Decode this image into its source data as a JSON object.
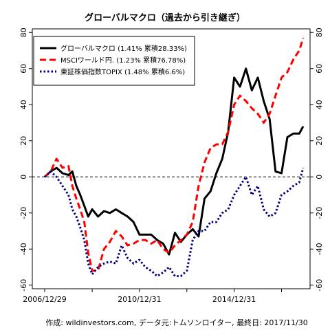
{
  "chart_data": {
    "type": "line",
    "title": "グローバルマクロ（過去から引き継ぎ）",
    "footer": "作成: wildinvestors.com, データ元:トムソンロイター, 最終日: 2017/11/30",
    "xlabel": "",
    "ylabel": "",
    "x_range": [
      "2006-12-29",
      "2017-11-30"
    ],
    "x_tick_labels": [
      "2006/12/29",
      "2010/12/31",
      "2014/12/31"
    ],
    "x_ticks": [
      "2006-12-29",
      "2008-12-31",
      "2010-12-31",
      "2012-12-31",
      "2014-12-31",
      "2016-12-31"
    ],
    "ylim": [
      -62,
      82
    ],
    "y_ticks": [
      -60,
      -40,
      -20,
      0,
      20,
      40,
      60,
      80
    ],
    "y_tick_labels": [
      "-60",
      "-40",
      "-20",
      "0",
      "20",
      "40",
      "60",
      "80"
    ],
    "reference_line": 0,
    "grid": false,
    "legend_position": "top-left",
    "series": [
      {
        "name": "グローバルマクロ (1.41% 累積28.33%)",
        "color": "#000000",
        "style": "solid",
        "points": [
          [
            "2006-12-29",
            0
          ],
          [
            "2007-03-31",
            3
          ],
          [
            "2007-06-30",
            5
          ],
          [
            "2007-09-30",
            2
          ],
          [
            "2007-12-31",
            1
          ],
          [
            "2008-02-29",
            3
          ],
          [
            "2008-04-30",
            -5
          ],
          [
            "2008-06-30",
            -10
          ],
          [
            "2008-08-31",
            -16
          ],
          [
            "2008-10-31",
            -22
          ],
          [
            "2008-12-31",
            -18
          ],
          [
            "2009-03-31",
            -22
          ],
          [
            "2009-06-30",
            -19
          ],
          [
            "2009-09-30",
            -20
          ],
          [
            "2009-12-31",
            -18
          ],
          [
            "2010-03-31",
            -20
          ],
          [
            "2010-06-30",
            -22
          ],
          [
            "2010-09-30",
            -25
          ],
          [
            "2010-12-31",
            -32
          ],
          [
            "2011-03-31",
            -32
          ],
          [
            "2011-06-30",
            -32
          ],
          [
            "2011-09-30",
            -35
          ],
          [
            "2011-12-31",
            -37
          ],
          [
            "2012-03-31",
            -43
          ],
          [
            "2012-06-30",
            -31
          ],
          [
            "2012-09-30",
            -36
          ],
          [
            "2012-12-31",
            -32
          ],
          [
            "2013-03-31",
            -29
          ],
          [
            "2013-06-30",
            -33
          ],
          [
            "2013-09-30",
            -12
          ],
          [
            "2013-12-31",
            -8
          ],
          [
            "2014-03-31",
            2
          ],
          [
            "2014-06-30",
            10
          ],
          [
            "2014-09-30",
            25
          ],
          [
            "2014-12-31",
            55
          ],
          [
            "2015-03-31",
            50
          ],
          [
            "2015-06-30",
            60
          ],
          [
            "2015-09-30",
            48
          ],
          [
            "2015-12-31",
            55
          ],
          [
            "2016-03-31",
            42
          ],
          [
            "2016-06-30",
            32
          ],
          [
            "2016-09-30",
            3
          ],
          [
            "2016-12-31",
            2
          ],
          [
            "2017-03-31",
            22
          ],
          [
            "2017-06-30",
            24
          ],
          [
            "2017-09-30",
            24
          ],
          [
            "2017-11-30",
            28
          ]
        ]
      },
      {
        "name": "MSCIワールド円. (1.23% 累積76.78%)",
        "color": "#ff0000",
        "style": "dashed",
        "points": [
          [
            "2006-12-29",
            0
          ],
          [
            "2007-03-31",
            3
          ],
          [
            "2007-06-30",
            10
          ],
          [
            "2007-09-30",
            5
          ],
          [
            "2007-12-31",
            6
          ],
          [
            "2008-02-29",
            -5
          ],
          [
            "2008-04-30",
            -12
          ],
          [
            "2008-06-30",
            -18
          ],
          [
            "2008-08-31",
            -25
          ],
          [
            "2008-10-31",
            -42
          ],
          [
            "2008-12-31",
            -52
          ],
          [
            "2009-03-31",
            -52
          ],
          [
            "2009-06-30",
            -40
          ],
          [
            "2009-09-30",
            -36
          ],
          [
            "2009-12-31",
            -30
          ],
          [
            "2010-03-31",
            -33
          ],
          [
            "2010-06-30",
            -38
          ],
          [
            "2010-09-30",
            -37
          ],
          [
            "2010-12-31",
            -35
          ],
          [
            "2011-03-31",
            -35
          ],
          [
            "2011-06-30",
            -37
          ],
          [
            "2011-09-30",
            -35
          ],
          [
            "2011-12-31",
            -40
          ],
          [
            "2012-03-31",
            -42
          ],
          [
            "2012-06-30",
            -38
          ],
          [
            "2012-09-30",
            -35
          ],
          [
            "2012-12-31",
            -32
          ],
          [
            "2013-03-31",
            -25
          ],
          [
            "2013-06-30",
            -5
          ],
          [
            "2013-09-30",
            8
          ],
          [
            "2013-12-31",
            16
          ],
          [
            "2014-03-31",
            18
          ],
          [
            "2014-06-30",
            18
          ],
          [
            "2014-09-30",
            25
          ],
          [
            "2014-12-31",
            40
          ],
          [
            "2015-03-31",
            45
          ],
          [
            "2015-06-30",
            42
          ],
          [
            "2015-09-30",
            38
          ],
          [
            "2015-12-31",
            35
          ],
          [
            "2016-03-31",
            30
          ],
          [
            "2016-06-30",
            35
          ],
          [
            "2016-09-30",
            45
          ],
          [
            "2016-12-31",
            55
          ],
          [
            "2017-03-31",
            58
          ],
          [
            "2017-06-30",
            65
          ],
          [
            "2017-09-30",
            70
          ],
          [
            "2017-11-30",
            77
          ]
        ]
      },
      {
        "name": "東証株価指数TOPIX (1.48% 累積6.6%)",
        "color": "#000080",
        "style": "dotted",
        "points": [
          [
            "2006-12-29",
            0
          ],
          [
            "2007-03-31",
            3
          ],
          [
            "2007-06-30",
            0
          ],
          [
            "2007-09-30",
            -5
          ],
          [
            "2007-12-31",
            -10
          ],
          [
            "2008-02-29",
            -18
          ],
          [
            "2008-04-30",
            -22
          ],
          [
            "2008-06-30",
            -28
          ],
          [
            "2008-08-31",
            -35
          ],
          [
            "2008-10-31",
            -48
          ],
          [
            "2008-12-31",
            -54
          ],
          [
            "2009-03-31",
            -50
          ],
          [
            "2009-06-30",
            -48
          ],
          [
            "2009-09-30",
            -47
          ],
          [
            "2009-12-31",
            -48
          ],
          [
            "2010-03-31",
            -38
          ],
          [
            "2010-06-30",
            -45
          ],
          [
            "2010-09-30",
            -48
          ],
          [
            "2010-12-31",
            -46
          ],
          [
            "2011-03-31",
            -50
          ],
          [
            "2011-06-30",
            -52
          ],
          [
            "2011-09-30",
            -55
          ],
          [
            "2011-12-31",
            -53
          ],
          [
            "2012-03-31",
            -50
          ],
          [
            "2012-06-30",
            -55
          ],
          [
            "2012-09-30",
            -55
          ],
          [
            "2012-12-31",
            -52
          ],
          [
            "2013-03-31",
            -35
          ],
          [
            "2013-06-30",
            -30
          ],
          [
            "2013-09-30",
            -30
          ],
          [
            "2013-12-31",
            -25
          ],
          [
            "2014-03-31",
            -25
          ],
          [
            "2014-06-30",
            -20
          ],
          [
            "2014-09-30",
            -18
          ],
          [
            "2014-12-31",
            -10
          ],
          [
            "2015-03-31",
            -5
          ],
          [
            "2015-06-30",
            0
          ],
          [
            "2015-09-30",
            -10
          ],
          [
            "2015-12-31",
            -5
          ],
          [
            "2016-03-31",
            -18
          ],
          [
            "2016-06-30",
            -22
          ],
          [
            "2016-09-30",
            -20
          ],
          [
            "2016-12-31",
            -10
          ],
          [
            "2017-03-31",
            -8
          ],
          [
            "2017-06-30",
            -5
          ],
          [
            "2017-09-30",
            -3
          ],
          [
            "2017-11-30",
            5
          ]
        ]
      }
    ]
  }
}
